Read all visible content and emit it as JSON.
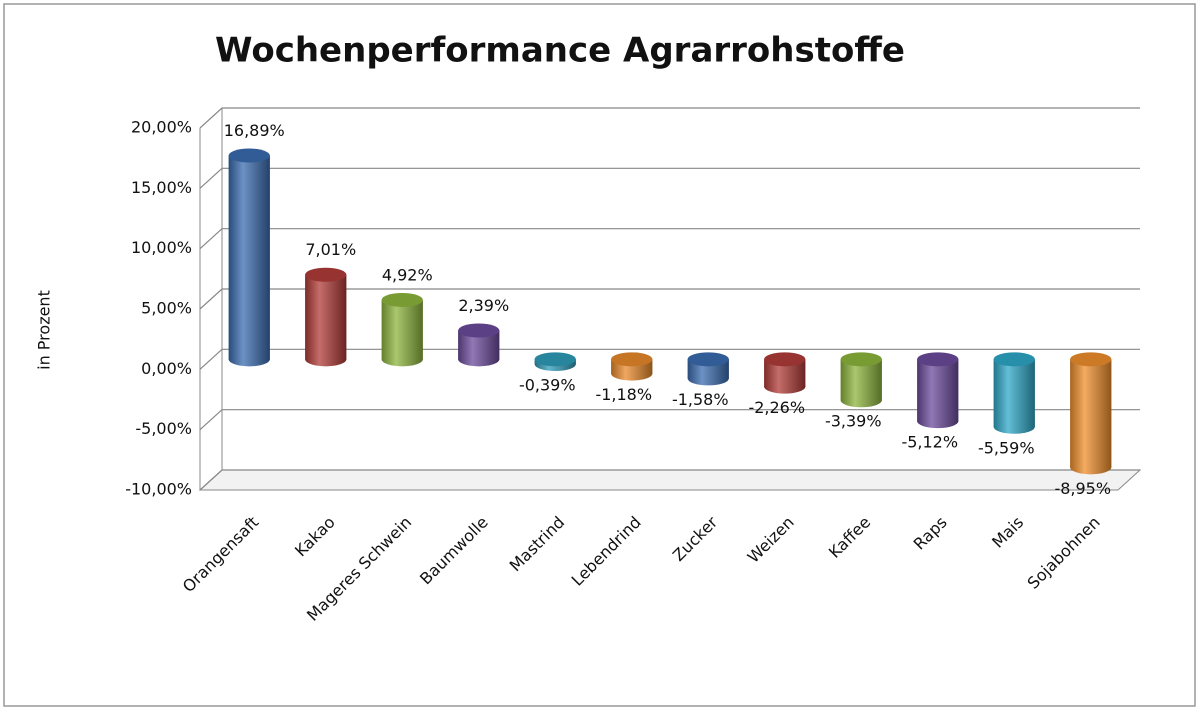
{
  "chart_data": {
    "type": "bar",
    "title": "Wochenperformance Agrarrohstoffe",
    "y_label": "in Prozent",
    "categories": [
      "Orangensaft",
      "Kakao",
      "Mageres Schwein",
      "Baumwolle",
      "Mastrind",
      "Lebendrind",
      "Zucker",
      "Weizen",
      "Kaffee",
      "Raps",
      "Mais",
      "Sojabohnen"
    ],
    "values": [
      16.89,
      7.01,
      4.92,
      2.39,
      -0.39,
      -1.18,
      -1.58,
      -2.26,
      -3.39,
      -5.12,
      -5.59,
      -8.95
    ],
    "value_labels": [
      "16,89%",
      "7,01%",
      "4,92%",
      "2,39%",
      "-0,39%",
      "-1,18%",
      "-1,58%",
      "-2,26%",
      "-3,39%",
      "-5,12%",
      "-5,59%",
      "-8,95%"
    ],
    "colors": [
      "#3b6cb0",
      "#b23c38",
      "#8db63d",
      "#6c4b9c",
      "#2f9cba",
      "#e98a2c",
      "#3b6cb0",
      "#b23c38",
      "#8db63d",
      "#6c4b9c",
      "#2fa8c8",
      "#f08f2c"
    ],
    "ylim": [
      -10,
      20
    ],
    "yticks": [
      {
        "value": -10,
        "label": "-10,00%"
      },
      {
        "value": -5,
        "label": "-5,00%"
      },
      {
        "value": 0,
        "label": "0,00%"
      },
      {
        "value": 5,
        "label": "5,00%"
      },
      {
        "value": 10,
        "label": "10,00%"
      },
      {
        "value": 15,
        "label": "15,00%"
      },
      {
        "value": 20,
        "label": "20,00%"
      }
    ],
    "grid": true
  }
}
